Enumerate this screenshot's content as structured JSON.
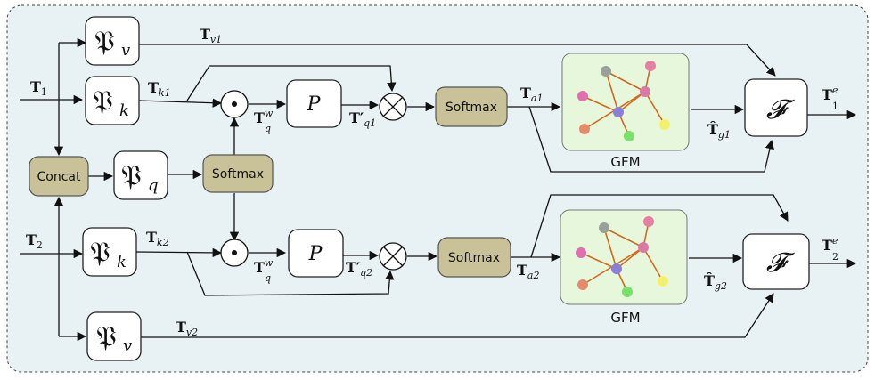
{
  "blocks": {
    "frak_v": "𝔓",
    "frak_v_sub": "v",
    "frak_k": "𝔓",
    "frak_k_sub": "k",
    "frak_q": "𝔓",
    "frak_q_sub": "q",
    "concat": "Concat",
    "softmax": "Softmax",
    "p": "P",
    "fuse": "𝓕",
    "gfm": "GFM",
    "dot_op": "⊙",
    "otimes_op": "⊗"
  },
  "labels": {
    "T1": "T",
    "T1_sub": "1",
    "T2": "T",
    "T2_sub": "2",
    "Tv1": "T",
    "Tv1_sub": "v1",
    "Tk1": "T",
    "Tk1_sub": "k1",
    "Tk2": "T",
    "Tk2_sub": "k2",
    "Tv2": "T",
    "Tv2_sub": "v2",
    "Tqw_top": "T",
    "Tqw_top_sup": "w",
    "Tqw_top_sub": "q",
    "Tqw_bot": "T",
    "Tqw_bot_sup": "w",
    "Tqw_bot_sub": "q",
    "Tq1p": "T′",
    "Tq1p_sub": "q1",
    "Tq2p": "T′",
    "Tq2p_sub": "q2",
    "Ta1": "T",
    "Ta1_sub": "a1",
    "Ta2": "T",
    "Ta2_sub": "a2",
    "Tg1": "T̂",
    "Tg1_sub": "g1",
    "Tg2": "T̂",
    "Tg2_sub": "g2",
    "T1e": "T",
    "T1e_sup": "e",
    "T1e_sub": "1",
    "T2e": "T",
    "T2e_sup": "e",
    "T2e_sub": "2"
  },
  "colors": {
    "panel_bg": "#e8f1f3",
    "olive": "#c9c298",
    "gfm_bg": "#e6f7dc",
    "graph_edge": "#d2691e"
  }
}
